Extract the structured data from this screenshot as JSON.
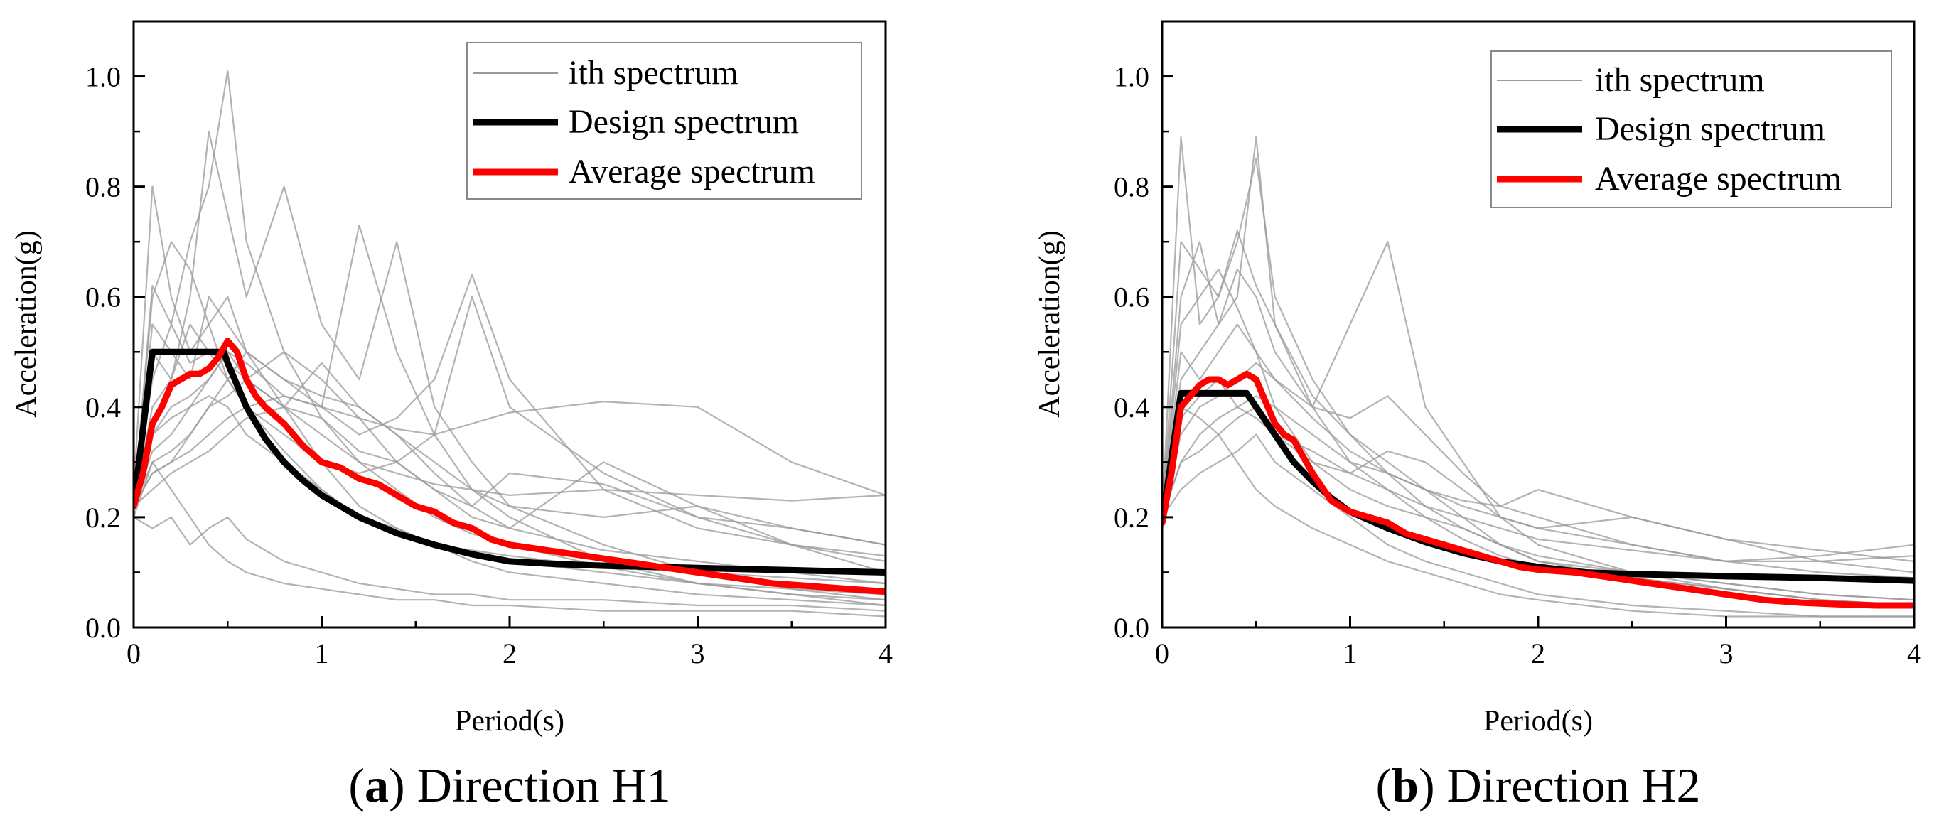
{
  "chart_data": [
    {
      "type": "line",
      "caption_letter": "a",
      "caption_text": "Direction H1",
      "xlabel": "Period(s)",
      "ylabel": "Acceleration(g)",
      "xlim": [
        0,
        4
      ],
      "ylim": [
        0,
        1.1
      ],
      "xticks": [
        0,
        1,
        2,
        3,
        4
      ],
      "yticks": [
        0.0,
        0.2,
        0.4,
        0.6,
        0.8,
        1.0
      ],
      "xtick_labels": [
        "0",
        "1",
        "2",
        "3",
        "4"
      ],
      "ytick_labels": [
        "0.0",
        "0.2",
        "0.4",
        "0.6",
        "0.8",
        "1.0"
      ],
      "grid": false,
      "legend_position": "top-right",
      "series": [
        {
          "name": "ith spectrum",
          "color": "#9a9a9a",
          "style": "thin-group",
          "samples_x": [
            0,
            0.1,
            0.2,
            0.3,
            0.4,
            0.5,
            0.6,
            0.8,
            1.0,
            1.2,
            1.4,
            1.6,
            1.8,
            2.0,
            2.5,
            3.0,
            3.5,
            4.0
          ],
          "lines": [
            [
              0.22,
              0.62,
              0.55,
              0.7,
              0.8,
              1.01,
              0.7,
              0.5,
              0.38,
              0.3,
              0.25,
              0.2,
              0.17,
              0.15,
              0.11,
              0.08,
              0.06,
              0.05
            ],
            [
              0.22,
              0.5,
              0.45,
              0.6,
              0.9,
              0.75,
              0.6,
              0.8,
              0.55,
              0.45,
              0.7,
              0.4,
              0.3,
              0.22,
              0.15,
              0.1,
              0.07,
              0.05
            ],
            [
              0.25,
              0.8,
              0.6,
              0.5,
              0.55,
              0.6,
              0.5,
              0.45,
              0.4,
              0.73,
              0.5,
              0.35,
              0.25,
              0.2,
              0.12,
              0.08,
              0.06,
              0.04
            ],
            [
              0.22,
              0.35,
              0.4,
              0.42,
              0.45,
              0.5,
              0.48,
              0.42,
              0.4,
              0.35,
              0.38,
              0.45,
              0.64,
              0.45,
              0.25,
              0.18,
              0.15,
              0.13
            ],
            [
              0.2,
              0.3,
              0.32,
              0.35,
              0.4,
              0.42,
              0.45,
              0.4,
              0.38,
              0.32,
              0.3,
              0.35,
              0.6,
              0.4,
              0.28,
              0.2,
              0.18,
              0.15
            ],
            [
              0.22,
              0.28,
              0.3,
              0.32,
              0.35,
              0.38,
              0.4,
              0.42,
              0.4,
              0.38,
              0.36,
              0.35,
              0.37,
              0.39,
              0.41,
              0.4,
              0.3,
              0.24
            ],
            [
              0.22,
              0.25,
              0.28,
              0.3,
              0.32,
              0.35,
              0.38,
              0.4,
              0.35,
              0.3,
              0.28,
              0.26,
              0.25,
              0.24,
              0.25,
              0.24,
              0.23,
              0.24
            ],
            [
              0.22,
              0.55,
              0.5,
              0.45,
              0.6,
              0.55,
              0.5,
              0.4,
              0.3,
              0.22,
              0.18,
              0.15,
              0.13,
              0.12,
              0.1,
              0.08,
              0.07,
              0.06
            ],
            [
              0.22,
              0.35,
              0.38,
              0.4,
              0.42,
              0.4,
              0.35,
              0.3,
              0.25,
              0.2,
              0.17,
              0.15,
              0.14,
              0.13,
              0.11,
              0.1,
              0.09,
              0.08
            ],
            [
              0.22,
              0.45,
              0.55,
              0.48,
              0.5,
              0.45,
              0.4,
              0.35,
              0.3,
              0.28,
              0.3,
              0.25,
              0.22,
              0.28,
              0.26,
              0.2,
              0.15,
              0.12
            ],
            [
              0.2,
              0.18,
              0.2,
              0.15,
              0.18,
              0.2,
              0.16,
              0.12,
              0.1,
              0.08,
              0.07,
              0.06,
              0.06,
              0.05,
              0.05,
              0.04,
              0.04,
              0.03
            ],
            [
              0.22,
              0.3,
              0.25,
              0.2,
              0.15,
              0.12,
              0.1,
              0.08,
              0.07,
              0.06,
              0.05,
              0.05,
              0.04,
              0.04,
              0.03,
              0.03,
              0.03,
              0.02
            ],
            [
              0.22,
              0.4,
              0.45,
              0.55,
              0.5,
              0.48,
              0.45,
              0.5,
              0.45,
              0.38,
              0.3,
              0.25,
              0.2,
              0.18,
              0.3,
              0.22,
              0.15,
              0.1
            ],
            [
              0.22,
              0.32,
              0.35,
              0.4,
              0.45,
              0.5,
              0.45,
              0.4,
              0.48,
              0.4,
              0.35,
              0.28,
              0.22,
              0.18,
              0.14,
              0.12,
              0.1,
              0.08
            ],
            [
              0.22,
              0.6,
              0.7,
              0.65,
              0.55,
              0.45,
              0.4,
              0.32,
              0.25,
              0.2,
              0.18,
              0.15,
              0.12,
              0.1,
              0.08,
              0.06,
              0.05,
              0.04
            ],
            [
              0.22,
              0.28,
              0.3,
              0.35,
              0.4,
              0.45,
              0.5,
              0.45,
              0.42,
              0.4,
              0.35,
              0.3,
              0.25,
              0.22,
              0.2,
              0.22,
              0.18,
              0.15
            ]
          ]
        },
        {
          "name": "Design spectrum",
          "color": "#000000",
          "x": [
            0,
            0.1,
            0.48,
            0.5,
            0.6,
            0.7,
            0.8,
            0.9,
            1.0,
            1.2,
            1.4,
            1.6,
            1.8,
            2.0,
            2.25,
            2.5,
            3.0,
            3.5,
            4.0
          ],
          "y": [
            0.22,
            0.5,
            0.5,
            0.48,
            0.4,
            0.343,
            0.3,
            0.267,
            0.24,
            0.2,
            0.171,
            0.15,
            0.133,
            0.12,
            0.115,
            0.112,
            0.108,
            0.104,
            0.1
          ]
        },
        {
          "name": "Average spectrum",
          "color": "#ff0000",
          "x": [
            0,
            0.05,
            0.1,
            0.15,
            0.2,
            0.25,
            0.3,
            0.35,
            0.4,
            0.45,
            0.5,
            0.55,
            0.6,
            0.65,
            0.7,
            0.8,
            0.9,
            1.0,
            1.1,
            1.2,
            1.3,
            1.4,
            1.5,
            1.6,
            1.7,
            1.8,
            1.9,
            2.0,
            2.2,
            2.4,
            2.6,
            2.8,
            3.0,
            3.2,
            3.4,
            3.6,
            3.8,
            4.0
          ],
          "y": [
            0.22,
            0.28,
            0.37,
            0.4,
            0.44,
            0.45,
            0.46,
            0.46,
            0.47,
            0.49,
            0.52,
            0.5,
            0.45,
            0.42,
            0.4,
            0.37,
            0.33,
            0.3,
            0.29,
            0.27,
            0.26,
            0.24,
            0.22,
            0.21,
            0.19,
            0.18,
            0.16,
            0.15,
            0.14,
            0.13,
            0.12,
            0.11,
            0.1,
            0.09,
            0.08,
            0.075,
            0.07,
            0.065
          ]
        }
      ]
    },
    {
      "type": "line",
      "caption_letter": "b",
      "caption_text": "Direction H2",
      "xlabel": "Period(s)",
      "ylabel": "Acceleration(g)",
      "xlim": [
        0,
        4
      ],
      "ylim": [
        0,
        1.1
      ],
      "xticks": [
        0,
        1,
        2,
        3,
        4
      ],
      "yticks": [
        0.0,
        0.2,
        0.4,
        0.6,
        0.8,
        1.0
      ],
      "xtick_labels": [
        "0",
        "1",
        "2",
        "3",
        "4"
      ],
      "ytick_labels": [
        "0.0",
        "0.2",
        "0.4",
        "0.6",
        "0.8",
        "1.0"
      ],
      "grid": false,
      "legend_position": "top-right",
      "series": [
        {
          "name": "ith spectrum",
          "color": "#9a9a9a",
          "style": "thin-group",
          "samples_x": [
            0,
            0.1,
            0.2,
            0.3,
            0.4,
            0.5,
            0.6,
            0.8,
            1.0,
            1.2,
            1.4,
            1.6,
            1.8,
            2.0,
            2.5,
            3.0,
            3.5,
            4.0
          ],
          "lines": [
            [
              0.2,
              0.89,
              0.55,
              0.6,
              0.7,
              0.85,
              0.6,
              0.45,
              0.35,
              0.28,
              0.22,
              0.18,
              0.15,
              0.13,
              0.1,
              0.08,
              0.06,
              0.05
            ],
            [
              0.2,
              0.6,
              0.7,
              0.55,
              0.65,
              0.6,
              0.5,
              0.4,
              0.55,
              0.7,
              0.4,
              0.3,
              0.2,
              0.15,
              0.1,
              0.07,
              0.05,
              0.04
            ],
            [
              0.2,
              0.45,
              0.5,
              0.55,
              0.6,
              0.89,
              0.55,
              0.4,
              0.3,
              0.25,
              0.2,
              0.16,
              0.13,
              0.11,
              0.09,
              0.07,
              0.05,
              0.04
            ],
            [
              0.2,
              0.35,
              0.4,
              0.42,
              0.45,
              0.48,
              0.45,
              0.4,
              0.38,
              0.42,
              0.35,
              0.28,
              0.22,
              0.2,
              0.15,
              0.12,
              0.13,
              0.15
            ],
            [
              0.2,
              0.3,
              0.35,
              0.38,
              0.4,
              0.42,
              0.4,
              0.35,
              0.3,
              0.28,
              0.25,
              0.22,
              0.2,
              0.18,
              0.15,
              0.12,
              0.12,
              0.13
            ],
            [
              0.2,
              0.5,
              0.45,
              0.5,
              0.55,
              0.5,
              0.45,
              0.38,
              0.32,
              0.28,
              0.25,
              0.23,
              0.22,
              0.25,
              0.2,
              0.16,
              0.14,
              0.12
            ],
            [
              0.2,
              0.25,
              0.28,
              0.3,
              0.32,
              0.35,
              0.3,
              0.25,
              0.2,
              0.15,
              0.12,
              0.1,
              0.08,
              0.06,
              0.04,
              0.03,
              0.02,
              0.02
            ],
            [
              0.2,
              0.4,
              0.38,
              0.35,
              0.3,
              0.25,
              0.22,
              0.18,
              0.15,
              0.12,
              0.1,
              0.08,
              0.06,
              0.05,
              0.03,
              0.02,
              0.02,
              0.02
            ],
            [
              0.2,
              0.55,
              0.6,
              0.65,
              0.58,
              0.5,
              0.4,
              0.3,
              0.25,
              0.22,
              0.2,
              0.18,
              0.15,
              0.12,
              0.1,
              0.08,
              0.06,
              0.05
            ],
            [
              0.2,
              0.3,
              0.32,
              0.35,
              0.38,
              0.4,
              0.35,
              0.3,
              0.28,
              0.32,
              0.3,
              0.25,
              0.2,
              0.18,
              0.2,
              0.16,
              0.12,
              0.1
            ],
            [
              0.2,
              0.7,
              0.65,
              0.6,
              0.72,
              0.62,
              0.55,
              0.42,
              0.35,
              0.3,
              0.25,
              0.2,
              0.15,
              0.12,
              0.09,
              0.07,
              0.05,
              0.04
            ],
            [
              0.2,
              0.38,
              0.42,
              0.45,
              0.4,
              0.38,
              0.35,
              0.32,
              0.28,
              0.25,
              0.22,
              0.2,
              0.18,
              0.16,
              0.14,
              0.12,
              0.1,
              0.09
            ]
          ]
        },
        {
          "name": "Design spectrum",
          "color": "#000000",
          "x": [
            0,
            0.1,
            0.45,
            0.5,
            0.6,
            0.7,
            0.8,
            0.9,
            1.0,
            1.2,
            1.4,
            1.6,
            1.8,
            2.0,
            2.25,
            2.5,
            3.0,
            3.5,
            4.0
          ],
          "y": [
            0.19,
            0.425,
            0.425,
            0.4,
            0.35,
            0.3,
            0.265,
            0.235,
            0.21,
            0.18,
            0.155,
            0.135,
            0.12,
            0.11,
            0.1,
            0.097,
            0.093,
            0.09,
            0.085
          ]
        },
        {
          "name": "Average spectrum",
          "color": "#ff0000",
          "x": [
            0,
            0.05,
            0.1,
            0.15,
            0.2,
            0.25,
            0.3,
            0.35,
            0.4,
            0.45,
            0.5,
            0.55,
            0.6,
            0.65,
            0.7,
            0.8,
            0.9,
            1.0,
            1.1,
            1.2,
            1.3,
            1.4,
            1.5,
            1.6,
            1.7,
            1.8,
            1.9,
            2.0,
            2.2,
            2.4,
            2.6,
            2.8,
            3.0,
            3.2,
            3.4,
            3.6,
            3.8,
            4.0
          ],
          "y": [
            0.19,
            0.28,
            0.4,
            0.42,
            0.44,
            0.45,
            0.45,
            0.44,
            0.45,
            0.46,
            0.45,
            0.41,
            0.37,
            0.35,
            0.34,
            0.28,
            0.23,
            0.21,
            0.2,
            0.19,
            0.17,
            0.16,
            0.15,
            0.14,
            0.13,
            0.12,
            0.11,
            0.105,
            0.1,
            0.09,
            0.08,
            0.07,
            0.06,
            0.05,
            0.045,
            0.042,
            0.04,
            0.04
          ]
        }
      ]
    }
  ]
}
